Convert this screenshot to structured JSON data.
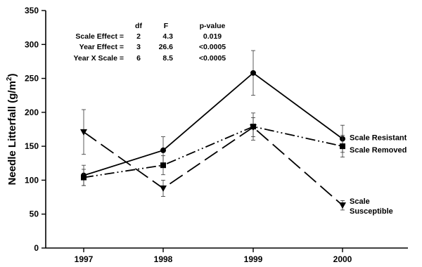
{
  "chart_data": {
    "type": "line",
    "title": "",
    "xlabel": "",
    "ylabel_main": "Needle Litterfall (g/m",
    "ylabel_sup": "2",
    "ylabel_close": ")",
    "x": [
      "1997",
      "1998",
      "1999",
      "2000"
    ],
    "ylim": [
      0,
      350
    ],
    "yticks": [
      0,
      50,
      100,
      150,
      200,
      250,
      300,
      350
    ],
    "grid": false,
    "series": [
      {
        "id": "resistant",
        "label_lines": [
          "Scale Resistant"
        ],
        "marker": "circle",
        "dash": "solid",
        "values": [
          107,
          144,
          258,
          161
        ],
        "errors": [
          15,
          20,
          33,
          20
        ]
      },
      {
        "id": "removed",
        "label_lines": [
          "Scale Removed"
        ],
        "marker": "square",
        "dash": "dash-dot-dot",
        "values": [
          104,
          122,
          179,
          150
        ],
        "errors": [
          12,
          14,
          20,
          16
        ]
      },
      {
        "id": "susceptible",
        "label_lines": [
          "Scale",
          "Susceptible"
        ],
        "marker": "triangle-down",
        "dash": "long-dash",
        "values": [
          171,
          88,
          178,
          63
        ],
        "errors": [
          33,
          12,
          14,
          7
        ]
      }
    ],
    "stats_table": {
      "headers": [
        "df",
        "F",
        "p-value"
      ],
      "rows": [
        {
          "label": "Scale Effect =",
          "df": "2",
          "F": "4.3",
          "p": "0.019"
        },
        {
          "label": "Year Effect =",
          "df": "3",
          "F": "26.6",
          "p": "<0.0005"
        },
        {
          "label": "Year X Scale =",
          "df": "6",
          "F": "8.5",
          "p": "<0.0005"
        }
      ]
    }
  }
}
